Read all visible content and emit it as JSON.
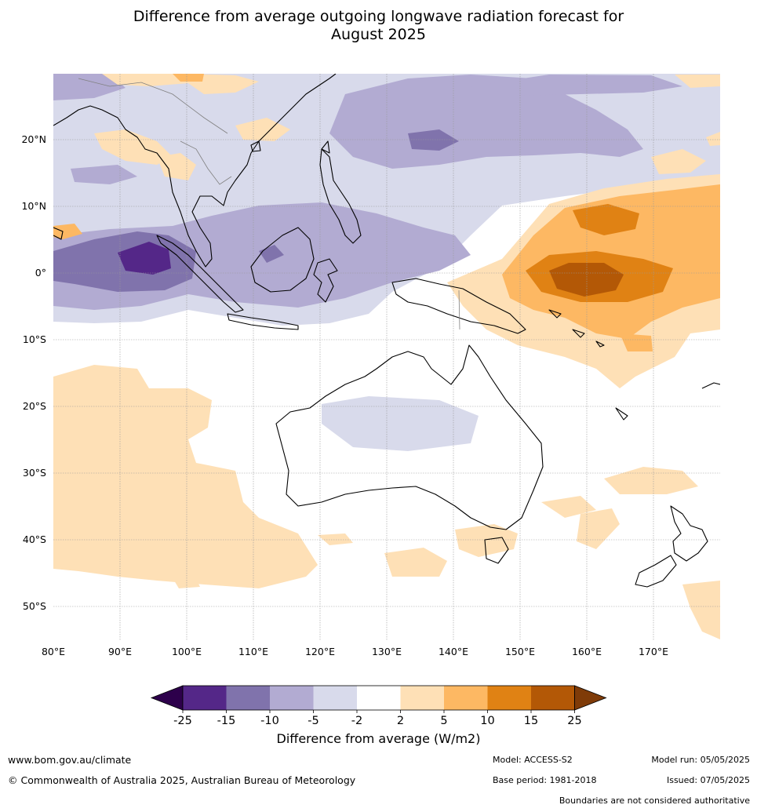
{
  "title": {
    "line1": "Difference from average outgoing longwave radiation forecast for",
    "line2": "August 2025"
  },
  "map": {
    "lon_ticks": [
      "80°E",
      "90°E",
      "100°E",
      "110°E",
      "120°E",
      "130°E",
      "140°E",
      "150°E",
      "160°E",
      "170°E"
    ],
    "lat_ticks": [
      "20°N",
      "10°N",
      "0°",
      "10°S",
      "20°S",
      "30°S",
      "40°S",
      "50°S"
    ],
    "colors": {
      "ocean": "#ffffff",
      "coast": "#000000",
      "border": "#808080",
      "grid": "#999999"
    }
  },
  "colorbar": {
    "title": "Difference from average (W/m2)",
    "tick_labels": [
      "-25",
      "-15",
      "-10",
      "-5",
      "-2",
      "2",
      "5",
      "10",
      "15",
      "25"
    ],
    "low_extend_color": "#2d004b",
    "high_extend_color": "#7f3b08",
    "segment_colors": [
      "#542788",
      "#8073ac",
      "#b2abd2",
      "#d8daeb",
      "#ffffff",
      "#fee0b6",
      "#fdb863",
      "#e08214",
      "#b35806"
    ]
  },
  "footer": {
    "website": "www.bom.gov.au/climate",
    "copyright": "© Commonwealth of Australia 2025, Australian Bureau of Meteorology",
    "model": "Model: ACCESS-S2",
    "base_period": "Base period: 1981-2018",
    "model_run": "Model run: 05/05/2025",
    "issued": "Issued: 07/05/2025",
    "disclaimer": "Boundaries are not considered authoritative"
  }
}
